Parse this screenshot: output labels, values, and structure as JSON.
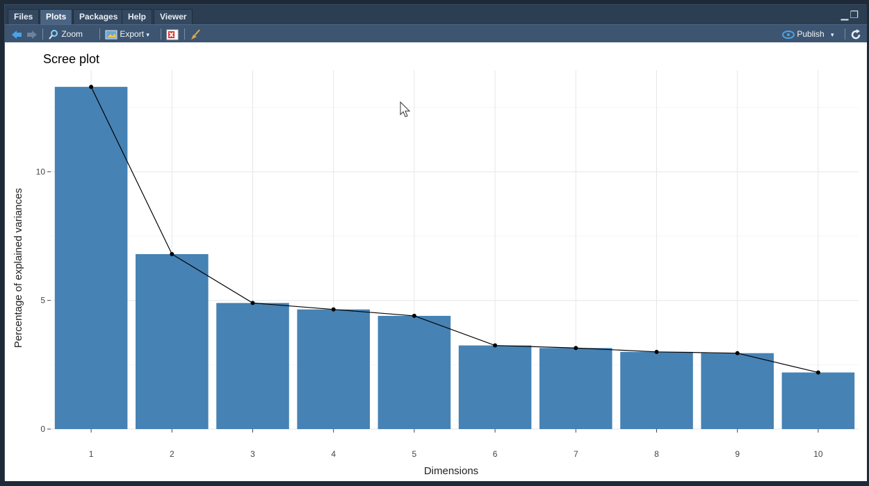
{
  "tabs": [
    {
      "label": "Files",
      "active": false
    },
    {
      "label": "Plots",
      "active": true
    },
    {
      "label": "Packages",
      "active": false
    },
    {
      "label": "Help",
      "active": false
    },
    {
      "label": "Viewer",
      "active": false
    }
  ],
  "toolbar": {
    "zoom_label": "Zoom",
    "export_label": "Export",
    "publish_label": "Publish"
  },
  "chart_data": {
    "type": "bar",
    "title": "Scree plot",
    "xlabel": "Dimensions",
    "ylabel": "Percentage of explained variances",
    "categories": [
      "1",
      "2",
      "3",
      "4",
      "5",
      "6",
      "7",
      "8",
      "9",
      "10"
    ],
    "values": [
      13.3,
      6.8,
      4.9,
      4.65,
      4.4,
      3.25,
      3.15,
      3.0,
      2.95,
      2.2
    ],
    "line_values": [
      13.3,
      6.8,
      4.9,
      4.65,
      4.4,
      3.25,
      3.15,
      3.0,
      2.95,
      2.2
    ],
    "yticks": [
      0,
      5,
      10
    ],
    "ylim": [
      0,
      13.95
    ],
    "bar_color": "#4682b4",
    "line_color": "#000000",
    "grid": true
  }
}
